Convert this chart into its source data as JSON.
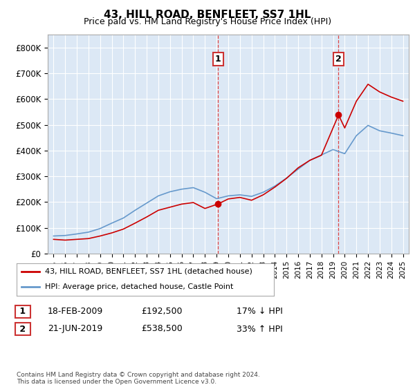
{
  "title": "43, HILL ROAD, BENFLEET, SS7 1HL",
  "subtitle": "Price paid vs. HM Land Registry's House Price Index (HPI)",
  "legend_label_red": "43, HILL ROAD, BENFLEET, SS7 1HL (detached house)",
  "legend_label_blue": "HPI: Average price, detached house, Castle Point",
  "transaction1_label": "1",
  "transaction1_date": "18-FEB-2009",
  "transaction1_price": "£192,500",
  "transaction1_hpi": "17% ↓ HPI",
  "transaction1_year": 2009.12,
  "transaction1_value": 192500,
  "transaction2_label": "2",
  "transaction2_date": "21-JUN-2019",
  "transaction2_price": "£538,500",
  "transaction2_hpi": "33% ↑ HPI",
  "transaction2_year": 2019.47,
  "transaction2_value": 538500,
  "footer": "Contains HM Land Registry data © Crown copyright and database right 2024.\nThis data is licensed under the Open Government Licence v3.0.",
  "ylim": [
    0,
    850000
  ],
  "yticks": [
    0,
    100000,
    200000,
    300000,
    400000,
    500000,
    600000,
    700000,
    800000
  ],
  "ytick_labels": [
    "£0",
    "£100K",
    "£200K",
    "£300K",
    "£400K",
    "£500K",
    "£600K",
    "£700K",
    "£800K"
  ],
  "xlim_start": 1994.5,
  "xlim_end": 2025.5,
  "red_color": "#cc0000",
  "blue_color": "#6699cc",
  "dashed_color": "#dd4444",
  "bg_color": "#dce8f5",
  "hpi_years": [
    1995,
    1996,
    1997,
    1998,
    1999,
    2000,
    2001,
    2002,
    2003,
    2004,
    2005,
    2006,
    2007,
    2008,
    2009,
    2010,
    2011,
    2012,
    2013,
    2014,
    2015,
    2016,
    2017,
    2018,
    2019,
    2020,
    2021,
    2022,
    2023,
    2024,
    2025
  ],
  "hpi_values": [
    68000,
    70000,
    76000,
    83000,
    97000,
    118000,
    138000,
    168000,
    196000,
    224000,
    240000,
    250000,
    256000,
    238000,
    213000,
    224000,
    228000,
    222000,
    238000,
    262000,
    293000,
    328000,
    362000,
    383000,
    404000,
    388000,
    458000,
    498000,
    477000,
    468000,
    458000
  ],
  "red_years": [
    1995,
    1996,
    1997,
    1998,
    1999,
    2000,
    2001,
    2002,
    2003,
    2004,
    2005,
    2006,
    2007,
    2008,
    2009.12,
    2010,
    2011,
    2012,
    2013,
    2014,
    2015,
    2016,
    2017,
    2018,
    2019.47,
    2020,
    2021,
    2022,
    2023,
    2024,
    2025
  ],
  "red_values": [
    55000,
    52000,
    55000,
    58000,
    68000,
    80000,
    95000,
    118000,
    142000,
    168000,
    180000,
    192000,
    198000,
    175000,
    192500,
    212000,
    218000,
    207000,
    228000,
    258000,
    292000,
    333000,
    362000,
    382000,
    538500,
    488000,
    592000,
    658000,
    628000,
    608000,
    592000
  ]
}
